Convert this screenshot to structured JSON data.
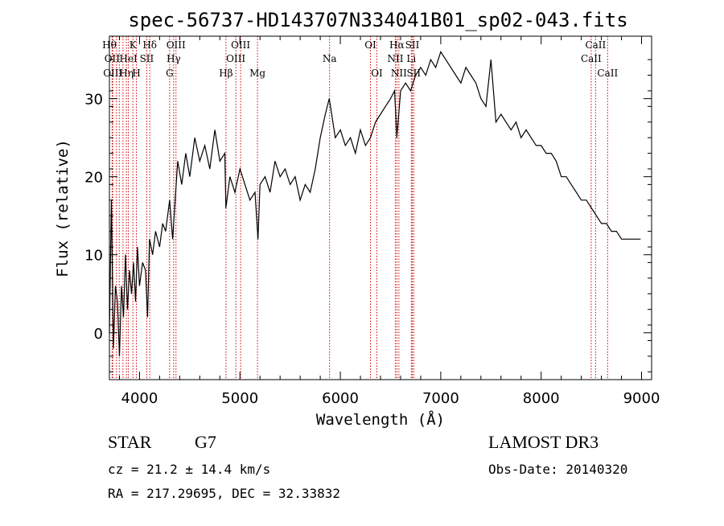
{
  "chart_data": {
    "type": "line",
    "title": "spec-56737-HD143707N334041B01_sp02-043.fits",
    "xlabel": "Wavelength (Å)",
    "ylabel": "Flux (relative)",
    "xlim": [
      3700,
      9100
    ],
    "ylim": [
      -6,
      38
    ],
    "xticks": [
      4000,
      5000,
      6000,
      7000,
      8000,
      9000
    ],
    "yticks": [
      0,
      10,
      20,
      30
    ],
    "series": [
      {
        "name": "flux",
        "x": [
          3700,
          3720,
          3740,
          3760,
          3780,
          3800,
          3820,
          3840,
          3860,
          3880,
          3900,
          3920,
          3940,
          3960,
          3980,
          4000,
          4030,
          4060,
          4080,
          4100,
          4130,
          4160,
          4200,
          4230,
          4260,
          4300,
          4330,
          4350,
          4380,
          4420,
          4460,
          4500,
          4550,
          4600,
          4650,
          4700,
          4750,
          4800,
          4850,
          4860,
          4900,
          4950,
          5000,
          5050,
          5100,
          5150,
          5180,
          5200,
          5250,
          5300,
          5350,
          5400,
          5450,
          5500,
          5550,
          5600,
          5650,
          5700,
          5750,
          5800,
          5850,
          5890,
          5950,
          6000,
          6050,
          6100,
          6150,
          6200,
          6250,
          6300,
          6350,
          6400,
          6450,
          6500,
          6540,
          6563,
          6600,
          6650,
          6700,
          6750,
          6800,
          6850,
          6900,
          6950,
          7000,
          7050,
          7100,
          7150,
          7200,
          7250,
          7300,
          7350,
          7400,
          7450,
          7500,
          7550,
          7600,
          7650,
          7700,
          7750,
          7800,
          7850,
          7900,
          7950,
          8000,
          8050,
          8100,
          8150,
          8200,
          8250,
          8300,
          8350,
          8400,
          8450,
          8500,
          8550,
          8600,
          8650,
          8700,
          8750,
          8800,
          8850,
          8900,
          8950,
          8990
        ],
        "y": [
          0,
          17,
          -2,
          6,
          4,
          -3,
          6,
          2,
          10,
          3,
          8,
          5,
          9,
          4,
          11,
          6,
          9,
          8,
          2,
          12,
          10,
          13,
          11,
          14,
          13,
          17,
          12,
          16,
          22,
          19,
          23,
          20,
          25,
          22,
          24,
          21,
          26,
          22,
          23,
          16,
          20,
          18,
          21,
          19,
          17,
          18,
          12,
          19,
          20,
          18,
          22,
          20,
          21,
          19,
          20,
          17,
          19,
          18,
          21,
          25,
          28,
          30,
          25,
          26,
          24,
          25,
          23,
          26,
          24,
          25,
          27,
          28,
          29,
          30,
          31,
          25,
          31,
          32,
          31,
          33,
          34,
          33,
          35,
          34,
          36,
          35,
          34,
          33,
          32,
          34,
          33,
          32,
          30,
          29,
          35,
          27,
          28,
          27,
          26,
          27,
          25,
          26,
          25,
          24,
          24,
          23,
          23,
          22,
          20,
          20,
          19,
          18,
          17,
          17,
          16,
          15,
          14,
          14,
          13,
          13,
          12,
          12,
          12,
          12,
          12
        ]
      }
    ],
    "lines": [
      {
        "x": 3700,
        "label": "Hθ",
        "row": 0
      },
      {
        "x": 3727,
        "label": "OII",
        "row": 1
      },
      {
        "x": 3734,
        "label": "OIII",
        "row": 2
      },
      {
        "x": 3770,
        "label": "",
        "row": -1
      },
      {
        "x": 3798,
        "label": "",
        "row": -1
      },
      {
        "x": 3835,
        "label": "",
        "row": -1
      },
      {
        "x": 3869,
        "label": "Hη",
        "row": 2
      },
      {
        "x": 3889,
        "label": "HeI",
        "row": 1
      },
      {
        "x": 3934,
        "label": "K",
        "row": 0
      },
      {
        "x": 3969,
        "label": "H",
        "row": 2
      },
      {
        "x": 4072,
        "label": "SII",
        "row": 1
      },
      {
        "x": 4102,
        "label": "Hδ",
        "row": 0
      },
      {
        "x": 4300,
        "label": "G",
        "row": 2
      },
      {
        "x": 4340,
        "label": "Hγ",
        "row": 1
      },
      {
        "x": 4363,
        "label": "OIII",
        "row": 0
      },
      {
        "x": 4861,
        "label": "Hβ",
        "row": 2
      },
      {
        "x": 4959,
        "label": "OIII",
        "row": 1
      },
      {
        "x": 5007,
        "label": "OIII",
        "row": 0
      },
      {
        "x": 5175,
        "label": "Mg",
        "row": 2
      },
      {
        "x": 5893,
        "label": "Na",
        "row": 1
      },
      {
        "x": 6300,
        "label": "OI",
        "row": 0
      },
      {
        "x": 6364,
        "label": "OI",
        "row": 2
      },
      {
        "x": 6548,
        "label": "NII",
        "row": 1
      },
      {
        "x": 6563,
        "label": "Hα",
        "row": 0
      },
      {
        "x": 6583,
        "label": "NII",
        "row": 2
      },
      {
        "x": 6707,
        "label": "Li",
        "row": 1
      },
      {
        "x": 6717,
        "label": "SII",
        "row": 0
      },
      {
        "x": 6731,
        "label": "SII",
        "row": 2
      },
      {
        "x": 8498,
        "label": "CaII",
        "row": 1
      },
      {
        "x": 8542,
        "label": "CaII",
        "row": 0
      },
      {
        "x": 8662,
        "label": "CaII",
        "row": 2
      }
    ]
  },
  "info": {
    "class": "STAR",
    "subclass": "G7",
    "cz": "cz = 21.2 ± 14.4 km/s",
    "radec": "RA = 217.29695, DEC =  32.33832",
    "survey": "LAMOST DR3",
    "obsdate": "Obs-Date: 20140320"
  }
}
